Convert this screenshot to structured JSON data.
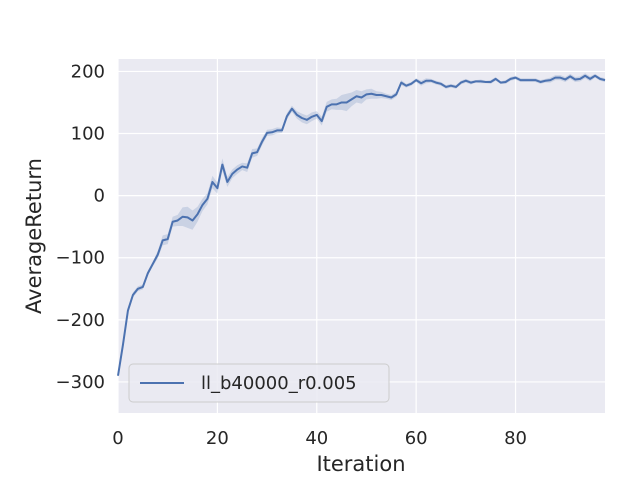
{
  "chart_data": {
    "type": "line",
    "title": "",
    "xlabel": "Iteration",
    "ylabel": "AverageReturn",
    "xlim": [
      0,
      98
    ],
    "ylim": [
      -350,
      220
    ],
    "x_ticks": [
      0,
      20,
      40,
      60,
      80
    ],
    "y_ticks": [
      -300,
      -200,
      -100,
      0,
      100,
      200
    ],
    "x_tick_labels": [
      "0",
      "20",
      "40",
      "60",
      "80"
    ],
    "y_tick_labels": [
      "−300",
      "−200",
      "−100",
      "0",
      "100",
      "200"
    ],
    "grid": true,
    "legend_position": "lower-left",
    "colors": {
      "background": "#eaeaf2",
      "grid": "#ffffff",
      "line": "#4c72b0",
      "band": "#4c72b0"
    },
    "series": [
      {
        "name": "ll_b40000_r0.005",
        "x": [
          0,
          1,
          2,
          3,
          4,
          5,
          6,
          7,
          8,
          9,
          10,
          11,
          12,
          13,
          14,
          15,
          16,
          17,
          18,
          19,
          20,
          21,
          22,
          23,
          24,
          25,
          26,
          27,
          28,
          29,
          30,
          31,
          32,
          33,
          34,
          35,
          36,
          37,
          38,
          39,
          40,
          41,
          42,
          43,
          44,
          45,
          46,
          47,
          48,
          49,
          50,
          51,
          52,
          53,
          54,
          55,
          56,
          57,
          58,
          59,
          60,
          61,
          62,
          63,
          64,
          65,
          66,
          67,
          68,
          69,
          70,
          71,
          72,
          73,
          74,
          75,
          76,
          77,
          78,
          79,
          80,
          81,
          82,
          83,
          84,
          85,
          86,
          87,
          88,
          89,
          90,
          91,
          92,
          93,
          94,
          95,
          96,
          97,
          98
        ],
        "values": [
          -290,
          -240,
          -185,
          -160,
          -150,
          -147,
          -125,
          -110,
          -95,
          -72,
          -70,
          -42,
          -40,
          -34,
          -35,
          -40,
          -30,
          -15,
          -5,
          22,
          12,
          50,
          22,
          35,
          42,
          47,
          45,
          68,
          70,
          87,
          101,
          102,
          105,
          105,
          128,
          140,
          130,
          125,
          122,
          127,
          130,
          120,
          143,
          147,
          147,
          150,
          150,
          155,
          160,
          158,
          163,
          164,
          162,
          162,
          160,
          158,
          163,
          182,
          177,
          180,
          186,
          181,
          185,
          185,
          182,
          180,
          175,
          177,
          175,
          182,
          185,
          182,
          184,
          184,
          183,
          183,
          188,
          182,
          183,
          188,
          190,
          186,
          186,
          186,
          186,
          183,
          185,
          186,
          190,
          190,
          187,
          192,
          187,
          188,
          193,
          188,
          193,
          188,
          186
        ],
        "band_lower": [
          -292,
          -243,
          -189,
          -164,
          -154,
          -151,
          -129,
          -114,
          -101,
          -80,
          -78,
          -50,
          -49,
          -49,
          -52,
          -55,
          -42,
          -25,
          -14,
          12,
          3,
          40,
          14,
          28,
          35,
          41,
          38,
          61,
          64,
          81,
          96,
          97,
          100,
          101,
          123,
          135,
          124,
          118,
          115,
          120,
          124,
          113,
          135,
          139,
          138,
          138,
          136,
          144,
          150,
          148,
          155,
          156,
          156,
          157,
          156,
          154,
          159,
          178,
          174,
          177,
          183,
          177,
          181,
          182,
          179,
          177,
          172,
          174,
          172,
          179,
          182,
          179,
          182,
          181,
          181,
          180,
          185,
          180,
          180,
          185,
          187,
          183,
          183,
          183,
          183,
          180,
          182,
          182,
          186,
          186,
          183,
          188,
          183,
          184,
          189,
          184,
          190,
          185,
          183
        ],
        "band_upper": [
          -288,
          -237,
          -181,
          -156,
          -146,
          -143,
          -121,
          -106,
          -89,
          -64,
          -62,
          -34,
          -31,
          -19,
          -18,
          -24,
          -18,
          -5,
          4,
          32,
          21,
          60,
          30,
          42,
          49,
          53,
          52,
          75,
          76,
          93,
          106,
          107,
          110,
          109,
          133,
          145,
          136,
          132,
          129,
          134,
          136,
          127,
          151,
          155,
          156,
          162,
          164,
          166,
          170,
          168,
          171,
          172,
          168,
          167,
          164,
          162,
          167,
          186,
          180,
          183,
          189,
          185,
          189,
          188,
          185,
          183,
          178,
          180,
          178,
          185,
          188,
          185,
          186,
          187,
          185,
          186,
          191,
          184,
          186,
          191,
          193,
          189,
          189,
          189,
          189,
          186,
          188,
          190,
          194,
          194,
          191,
          196,
          191,
          192,
          197,
          192,
          196,
          191,
          189
        ]
      }
    ]
  }
}
